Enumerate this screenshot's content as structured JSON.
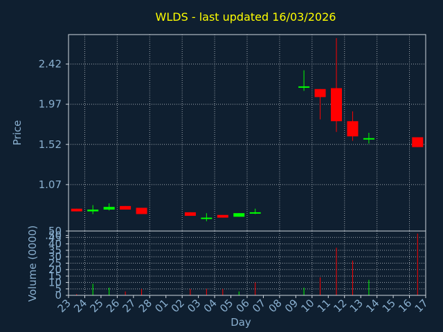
{
  "chart_data": [
    {
      "type": "candlestick",
      "title": "WLDS - last updated 16/03/2026",
      "ylabel": "Price",
      "ylim": [
        0.55,
        2.75
      ],
      "yticks": [
        "2.42",
        "1.97",
        "1.52",
        "1.07",
        ".50"
      ],
      "categories": [
        "23",
        "24",
        "25",
        "26",
        "27",
        "28",
        "01",
        "02",
        "03",
        "04",
        "05",
        "06",
        "07",
        "08",
        "09",
        "10",
        "11",
        "12",
        "13",
        "14",
        "15",
        "16",
        "17"
      ],
      "candles": [
        {
          "day": "23",
          "open": 0.8,
          "close": 0.77,
          "high": 0.8,
          "low": 0.77
        },
        {
          "day": "24",
          "open": 0.77,
          "close": 0.79,
          "high": 0.84,
          "low": 0.74
        },
        {
          "day": "25",
          "open": 0.79,
          "close": 0.82,
          "high": 0.86,
          "low": 0.78
        },
        {
          "day": "26",
          "open": 0.83,
          "close": 0.79,
          "high": 0.83,
          "low": 0.79
        },
        {
          "day": "27",
          "open": 0.81,
          "close": 0.74,
          "high": 0.81,
          "low": 0.74
        },
        {
          "day": "02",
          "open": 0.76,
          "close": 0.72,
          "high": 0.76,
          "low": 0.72
        },
        {
          "day": "03",
          "open": 0.7,
          "close": 0.7,
          "high": 0.75,
          "low": 0.66
        },
        {
          "day": "04",
          "open": 0.73,
          "close": 0.7,
          "high": 0.73,
          "low": 0.7
        },
        {
          "day": "05",
          "open": 0.71,
          "close": 0.75,
          "high": 0.75,
          "low": 0.71
        },
        {
          "day": "06",
          "open": 0.76,
          "close": 0.76,
          "high": 0.8,
          "low": 0.74
        },
        {
          "day": "09",
          "open": 2.17,
          "close": 2.17,
          "high": 2.35,
          "low": 2.12
        },
        {
          "day": "10",
          "open": 2.14,
          "close": 2.05,
          "high": 2.14,
          "low": 1.8
        },
        {
          "day": "11",
          "open": 2.15,
          "close": 1.78,
          "high": 2.71,
          "low": 1.66
        },
        {
          "day": "12",
          "open": 1.78,
          "close": 1.61,
          "high": 1.89,
          "low": 1.56
        },
        {
          "day": "13",
          "open": 1.59,
          "close": 1.59,
          "high": 1.65,
          "low": 1.53
        },
        {
          "day": "16",
          "open": 1.6,
          "close": 1.49,
          "high": 1.6,
          "low": 1.49
        }
      ],
      "colors": {
        "up": "#00ff00",
        "down": "#ff0000"
      }
    },
    {
      "type": "bar",
      "xlabel": "Day",
      "ylabel": "Volume (0000)",
      "ylim": [
        0,
        50
      ],
      "yticks": [
        "50",
        "45",
        "40",
        "35",
        "30",
        "25",
        "20",
        "15",
        "10",
        "5",
        "0"
      ],
      "categories": [
        "23",
        "24",
        "25",
        "26",
        "27",
        "28",
        "01",
        "02",
        "03",
        "04",
        "05",
        "06",
        "07",
        "08",
        "09",
        "10",
        "11",
        "12",
        "13",
        "14",
        "15",
        "16",
        "17"
      ],
      "series": [
        {
          "values": [
            {
              "day": "23",
              "value": 1,
              "direction": "down"
            },
            {
              "day": "24",
              "value": 9,
              "direction": "up"
            },
            {
              "day": "25",
              "value": 6,
              "direction": "up"
            },
            {
              "day": "26",
              "value": 3,
              "direction": "down"
            },
            {
              "day": "27",
              "value": 5,
              "direction": "down"
            },
            {
              "day": "02",
              "value": 5,
              "direction": "down"
            },
            {
              "day": "03",
              "value": 5,
              "direction": "down"
            },
            {
              "day": "04",
              "value": 5,
              "direction": "down"
            },
            {
              "day": "05",
              "value": 3,
              "direction": "up"
            },
            {
              "day": "06",
              "value": 10,
              "direction": "down"
            },
            {
              "day": "09",
              "value": 6,
              "direction": "up"
            },
            {
              "day": "10",
              "value": 14,
              "direction": "down"
            },
            {
              "day": "11",
              "value": 37,
              "direction": "down"
            },
            {
              "day": "12",
              "value": 27,
              "direction": "down"
            },
            {
              "day": "13",
              "value": 12,
              "direction": "up"
            },
            {
              "day": "16",
              "value": 48,
              "direction": "down"
            }
          ]
        }
      ]
    }
  ],
  "style": {
    "background": "#0f1f30",
    "grid_color": "#a0a8b0",
    "text_color": "#8ab0d0",
    "title_color": "#ffff00",
    "axis_color": "#d0d8e0"
  }
}
